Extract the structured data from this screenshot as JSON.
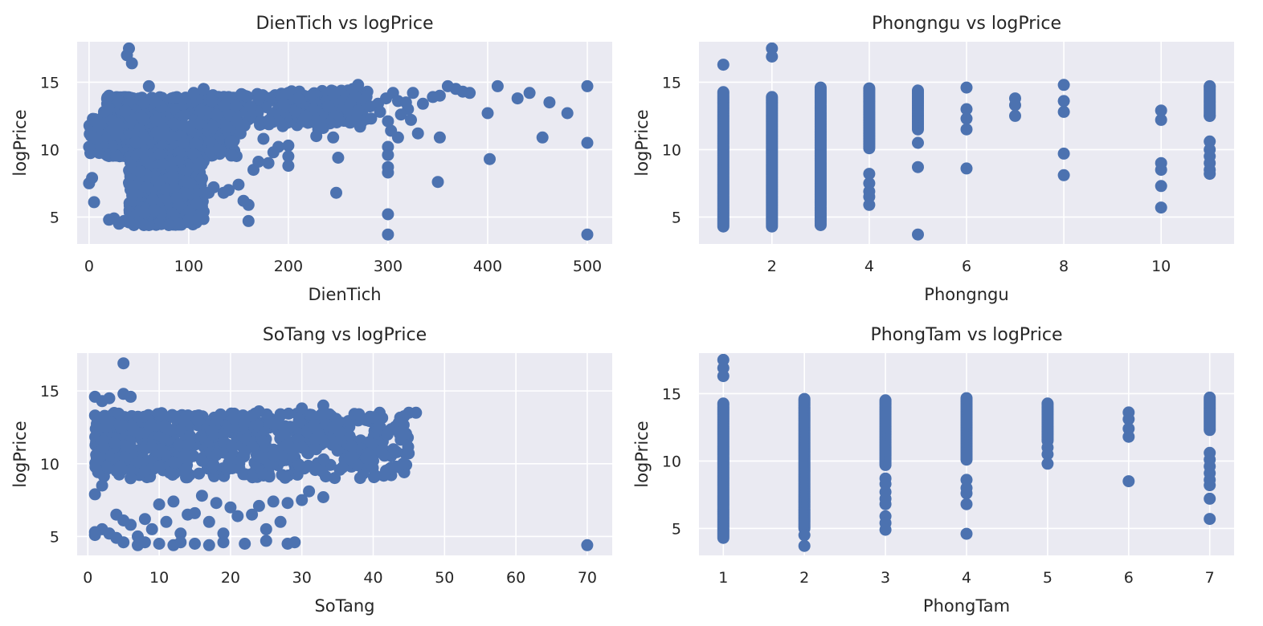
{
  "chart_data": [
    {
      "type": "scatter",
      "title": "DienTich vs logPrice",
      "xlabel": "DienTich",
      "ylabel": "logPrice",
      "xlim": [
        -12,
        525
      ],
      "ylim": [
        3,
        18
      ],
      "xticks": [
        0,
        100,
        200,
        300,
        400,
        500
      ],
      "yticks": [
        5,
        10,
        15
      ],
      "grid": true,
      "color": "#4c72b0",
      "series": [
        {
          "x": [
            38,
            40,
            43,
            0,
            2,
            5,
            10,
            15,
            20,
            0,
            5,
            3,
            2,
            8,
            60,
            105,
            115,
            140,
            170,
            195,
            200,
            210,
            220,
            240,
            250,
            255,
            262,
            270,
            275,
            282,
            290,
            298,
            305,
            310,
            318,
            325,
            335,
            345,
            352,
            360,
            368,
            375,
            382,
            400,
            410,
            430,
            442,
            462,
            480,
            500,
            500,
            455,
            402,
            352,
            350,
            330,
            320,
            310,
            300,
            300,
            300,
            300,
            300,
            300,
            250,
            248,
            200,
            200,
            200,
            245,
            230,
            270,
            160,
            140,
            135,
            120,
            115,
            110,
            105,
            100,
            90,
            80,
            70,
            60,
            55,
            50,
            45,
            40,
            35,
            30,
            25,
            20,
            300,
            500,
            150,
            155,
            160,
            165,
            170,
            180,
            190,
            185,
            175,
            125,
            130,
            142,
            148,
            152,
            158,
            162,
            64,
            72,
            84,
            96,
            108,
            58,
            66,
            74,
            88,
            98,
            128,
            138,
            215,
            225,
            235,
            218,
            228,
            262,
            272,
            283,
            292,
            303,
            313,
            323
          ],
          "y": [
            17.0,
            17.5,
            16.4,
            10.2,
            11.3,
            12.2,
            11.8,
            12.8,
            14.0,
            7.5,
            6.1,
            7.9,
            11.0,
            10.8,
            14.7,
            14.2,
            14.5,
            13.9,
            13.7,
            13.4,
            14.2,
            13.8,
            12.0,
            13.2,
            14.2,
            13.6,
            13.4,
            14.8,
            13.0,
            13.2,
            13.4,
            13.8,
            14.2,
            13.6,
            13.5,
            14.2,
            13.4,
            13.9,
            14.0,
            14.7,
            14.5,
            14.3,
            14.2,
            12.7,
            14.7,
            13.8,
            14.2,
            13.5,
            12.7,
            14.7,
            10.5,
            10.9,
            9.3,
            10.9,
            7.6,
            11.2,
            13.0,
            10.9,
            12.1,
            9.6,
            8.3,
            8.7,
            10.2,
            5.2,
            9.4,
            6.8,
            10.3,
            8.8,
            9.5,
            10.9,
            11.5,
            12.9,
            5.9,
            7.0,
            6.8,
            6.8,
            5.4,
            5.1,
            4.9,
            4.8,
            4.5,
            4.4,
            4.5,
            4.4,
            4.4,
            4.6,
            4.4,
            4.6,
            4.7,
            4.5,
            4.9,
            4.8,
            3.7,
            3.7,
            7.4,
            6.2,
            4.7,
            8.5,
            9.1,
            9.0,
            10.2,
            9.8,
            10.8,
            7.2,
            10.0,
            12.5,
            12.1,
            11.2,
            12.8,
            13.2,
            6.3,
            5.2,
            8.1,
            6.8,
            6.0,
            7.2,
            5.5,
            8.9,
            6.4,
            7.6,
            12.6,
            11.7,
            12.1,
            13.0,
            11.6,
            12.5,
            11.0,
            12.0,
            11.7,
            12.3,
            12.8,
            11.4,
            12.6,
            12.2
          ]
        }
      ]
    },
    {
      "type": "scatter",
      "title": "Phongngu vs logPrice",
      "xlabel": "Phongngu",
      "ylabel": "logPrice",
      "xlim": [
        0.5,
        11.5
      ],
      "ylim": [
        3,
        18
      ],
      "xticks": [
        2,
        4,
        6,
        8,
        10
      ],
      "yticks": [
        5,
        10,
        15
      ],
      "grid": true,
      "color": "#4c72b0",
      "series": [
        {
          "x": [
            1,
            2,
            2,
            4,
            4,
            4,
            4,
            4,
            5,
            5,
            5,
            6,
            6,
            6,
            6,
            6,
            7,
            7,
            7,
            8,
            8,
            8,
            8,
            8,
            10,
            10,
            10,
            10,
            10,
            10,
            11,
            11,
            11,
            11,
            11,
            11,
            11,
            11
          ],
          "y": [
            16.3,
            17.5,
            16.9,
            8.2,
            7.5,
            6.9,
            6.5,
            5.9,
            8.7,
            10.5,
            3.7,
            14.6,
            13.0,
            12.3,
            11.5,
            8.6,
            13.8,
            13.3,
            12.5,
            14.8,
            13.6,
            12.8,
            9.7,
            8.1,
            12.9,
            12.2,
            9.0,
            8.5,
            7.3,
            5.7,
            14.7,
            12.5,
            10.6,
            10.0,
            9.5,
            9.0,
            8.5,
            8.2
          ]
        }
      ],
      "columns": [
        {
          "x": 1,
          "ymin": 4.3,
          "ymax": 14.3
        },
        {
          "x": 2,
          "ymin": 4.3,
          "ymax": 13.9
        },
        {
          "x": 3,
          "ymin": 4.4,
          "ymax": 14.6
        },
        {
          "x": 4,
          "ymin": 10.1,
          "ymax": 14.6
        },
        {
          "x": 5,
          "ymin": 11.5,
          "ymax": 14.4
        },
        {
          "x": 11,
          "ymin": 12.5,
          "ymax": 14.7
        }
      ]
    },
    {
      "type": "scatter",
      "title": "SoTang vs logPrice",
      "xlabel": "SoTang",
      "ylabel": "logPrice",
      "xlim": [
        -1.5,
        73.5
      ],
      "ylim": [
        3.7,
        17.6
      ],
      "xticks": [
        0,
        10,
        20,
        30,
        40,
        50,
        60,
        70
      ],
      "yticks": [
        5,
        10,
        15
      ],
      "grid": true,
      "color": "#4c72b0",
      "series": [
        {
          "x": [
            5,
            1,
            2,
            3,
            5,
            6,
            35,
            38,
            40,
            41,
            44,
            45,
            46,
            42,
            33,
            30,
            27,
            24,
            40,
            39,
            37,
            35,
            32,
            30,
            28,
            26,
            24,
            22,
            20,
            18,
            16,
            14,
            12,
            10,
            8,
            6,
            4,
            2,
            1,
            70,
            29,
            28,
            25,
            22,
            19,
            17,
            15,
            13,
            12,
            10,
            8,
            7,
            5,
            4,
            3,
            31,
            30,
            28,
            26,
            24,
            23,
            20,
            18,
            16,
            14,
            12,
            10,
            8,
            6,
            4,
            2,
            1,
            1,
            33,
            27,
            25,
            21,
            19,
            17,
            15,
            13,
            11,
            9,
            7,
            5,
            3
          ],
          "y": [
            16.9,
            14.6,
            14.3,
            14.5,
            14.8,
            14.6,
            12.8,
            13.4,
            13.2,
            12.5,
            12.2,
            13.5,
            13.5,
            12.0,
            14.0,
            13.8,
            13.4,
            13.6,
            10.2,
            10.4,
            11.2,
            10.9,
            11.0,
            11.1,
            11.3,
            10.6,
            10.5,
            10.8,
            10.4,
            10.6,
            10.2,
            10.3,
            10.1,
            9.8,
            9.5,
            9.0,
            9.5,
            8.5,
            7.9,
            4.4,
            4.6,
            4.5,
            4.7,
            4.5,
            4.6,
            4.4,
            4.5,
            4.6,
            4.4,
            4.5,
            4.6,
            4.4,
            4.6,
            4.9,
            5.2,
            8.1,
            7.5,
            7.3,
            7.4,
            7.1,
            6.5,
            7.0,
            7.3,
            7.8,
            6.5,
            7.4,
            7.2,
            6.2,
            5.8,
            6.5,
            5.5,
            5.3,
            5.1,
            7.7,
            6.0,
            5.5,
            6.4,
            5.2,
            6.0,
            6.6,
            5.2,
            6.0,
            5.5,
            5.0,
            6.1,
            5.2
          ]
        }
      ],
      "dense_region": {
        "x_range": [
          1,
          45
        ],
        "y_range": [
          9.0,
          13.5
        ]
      }
    },
    {
      "type": "scatter",
      "title": "PhongTam vs logPrice",
      "xlabel": "PhongTam",
      "ylabel": "logPrice",
      "xlim": [
        0.7,
        7.3
      ],
      "ylim": [
        3,
        18
      ],
      "xticks": [
        1,
        2,
        3,
        4,
        5,
        6,
        7
      ],
      "yticks": [
        5,
        10,
        15
      ],
      "grid": true,
      "color": "#4c72b0",
      "series": [
        {
          "x": [
            1,
            1,
            1,
            2,
            2,
            3,
            3,
            3,
            3,
            3,
            3,
            3,
            3,
            4,
            4,
            4,
            4,
            4,
            5,
            5,
            5,
            6,
            6,
            6,
            6,
            6,
            7,
            7,
            7,
            7,
            7,
            7,
            7,
            7
          ],
          "y": [
            17.5,
            16.9,
            16.3,
            4.5,
            3.7,
            8.7,
            8.3,
            7.7,
            7.2,
            6.8,
            5.9,
            5.4,
            4.9,
            8.6,
            8.0,
            7.6,
            6.8,
            4.6,
            11.0,
            10.5,
            9.8,
            13.6,
            13.1,
            12.4,
            11.8,
            8.5,
            10.6,
            10.1,
            9.6,
            9.1,
            8.6,
            8.2,
            7.2,
            5.7
          ]
        }
      ],
      "columns": [
        {
          "x": 1,
          "ymin": 4.3,
          "ymax": 14.3
        },
        {
          "x": 2,
          "ymin": 5.0,
          "ymax": 14.7
        },
        {
          "x": 3,
          "ymin": 9.7,
          "ymax": 14.6
        },
        {
          "x": 4,
          "ymin": 10.1,
          "ymax": 14.7
        },
        {
          "x": 5,
          "ymin": 11.5,
          "ymax": 14.3
        },
        {
          "x": 7,
          "ymin": 12.3,
          "ymax": 14.8
        }
      ]
    }
  ]
}
